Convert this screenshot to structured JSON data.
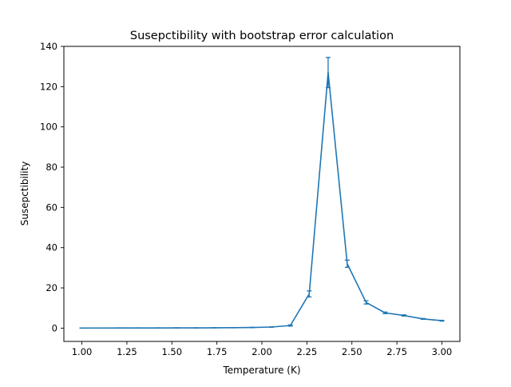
{
  "chart_data": {
    "type": "line",
    "title": "Susepctibility with bootstrap error calculation",
    "xlabel": "Temperature (K)",
    "ylabel": "Susepctibility",
    "xlim": [
      0.9,
      3.1
    ],
    "ylim": [
      -6.6,
      140
    ],
    "xticks": [
      1.0,
      1.25,
      1.5,
      1.75,
      2.0,
      2.25,
      2.5,
      2.75,
      3.0
    ],
    "xtick_labels": [
      "1.00",
      "1.25",
      "1.50",
      "1.75",
      "2.00",
      "2.25",
      "2.50",
      "2.75",
      "3.00"
    ],
    "yticks": [
      0,
      20,
      40,
      60,
      80,
      100,
      120,
      140
    ],
    "ytick_labels": [
      "0",
      "20",
      "40",
      "60",
      "80",
      "100",
      "120",
      "140"
    ],
    "grid": false,
    "series": [
      {
        "color": "#1f77b4",
        "error_bars": true,
        "x": [
          1.0,
          1.105,
          1.211,
          1.316,
          1.421,
          1.526,
          1.632,
          1.737,
          1.842,
          1.947,
          2.053,
          2.158,
          2.263,
          2.368,
          2.474,
          2.579,
          2.684,
          2.789,
          2.895,
          3.0
        ],
        "y": [
          0.05,
          0.06,
          0.07,
          0.08,
          0.09,
          0.11,
          0.13,
          0.17,
          0.23,
          0.33,
          0.55,
          1.3,
          17.0,
          127.0,
          32.0,
          12.8,
          7.6,
          6.3,
          4.6,
          3.7
        ],
        "yerr": [
          0.05,
          0.05,
          0.05,
          0.05,
          0.05,
          0.05,
          0.05,
          0.05,
          0.05,
          0.1,
          0.1,
          0.3,
          1.5,
          7.5,
          1.8,
          0.8,
          0.4,
          0.3,
          0.2,
          0.2
        ]
      }
    ]
  }
}
